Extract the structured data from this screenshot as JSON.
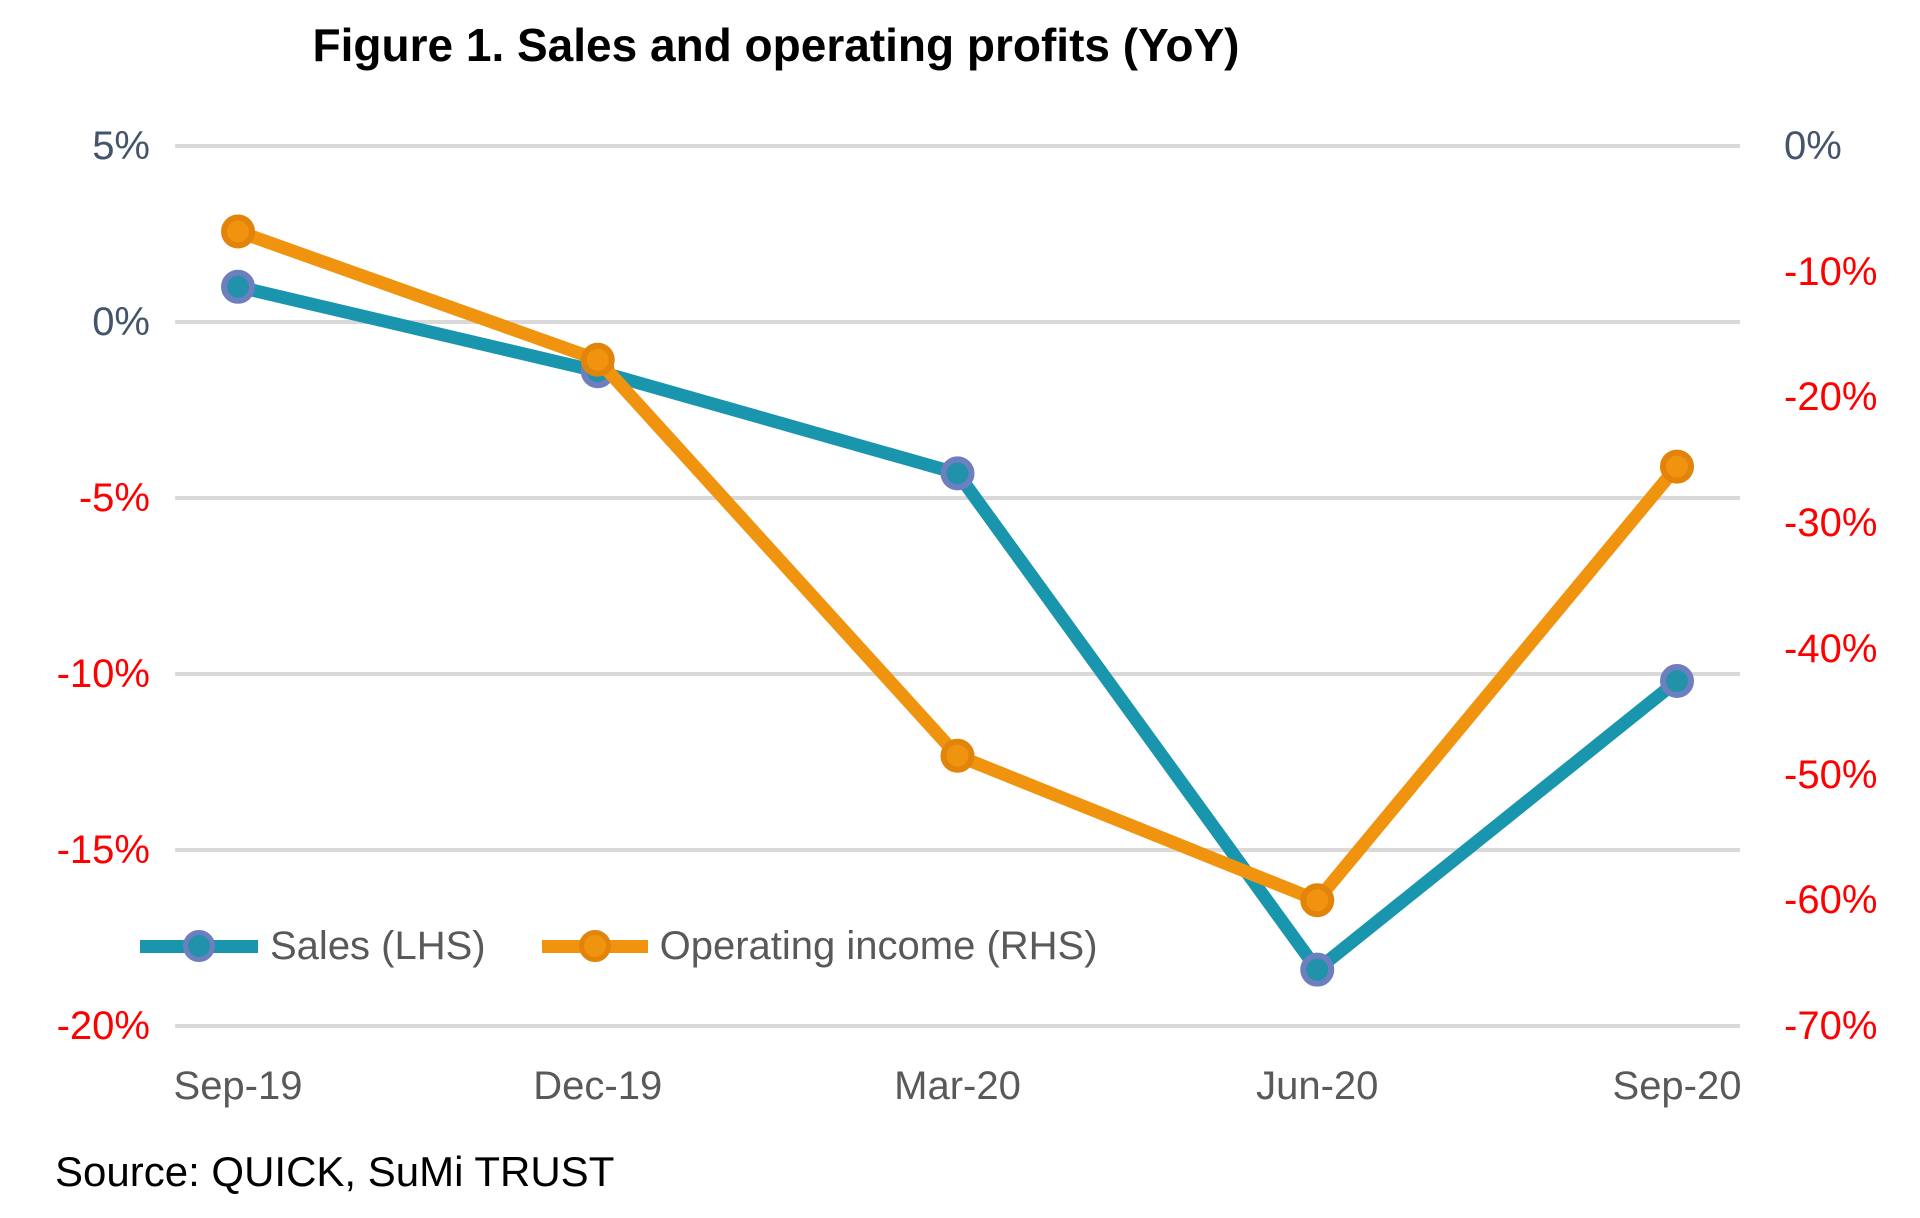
{
  "title": "Figure 1. Sales and operating profits (YoY)",
  "source": "Source: QUICK, SuMi TRUST",
  "chart_data": {
    "type": "line",
    "title": "Figure 1. Sales and operating profits (YoY)",
    "categories": [
      "Sep-19",
      "Dec-19",
      "Mar-20",
      "Jun-20",
      "Sep-20"
    ],
    "series": [
      {
        "name": "Sales (LHS)",
        "axis": "left",
        "values": [
          1.0,
          -1.4,
          -4.3,
          -18.4,
          -10.2
        ],
        "line_color": "#1995ad",
        "marker_fill": "#2292aa",
        "marker_stroke": "#6e7fbf"
      },
      {
        "name": "Operating income (RHS)",
        "axis": "right",
        "values": [
          -6.8,
          -17.0,
          -48.5,
          -60.0,
          -25.5
        ],
        "line_color": "#f0940f",
        "marker_fill": "#f0940f",
        "marker_stroke": "#e2830a"
      }
    ],
    "left_axis": {
      "ticks": [
        "5%",
        "0%",
        "-5%",
        "-10%",
        "-15%",
        "-20%"
      ],
      "max": 5,
      "min": -20,
      "positive_color": "#44546a",
      "negative_color": "#ff0000"
    },
    "right_axis": {
      "ticks": [
        "0%",
        "-10%",
        "-20%",
        "-30%",
        "-40%",
        "-50%",
        "-60%",
        "-70%"
      ],
      "max": 0,
      "min": -70,
      "positive_color": "#44546a",
      "negative_color": "#ff0000"
    },
    "x_axis": {
      "label_color": "#595959"
    },
    "grid": {
      "color": "#d9d9d9",
      "width": 4
    },
    "legend_position": "bottom-left-inside"
  }
}
